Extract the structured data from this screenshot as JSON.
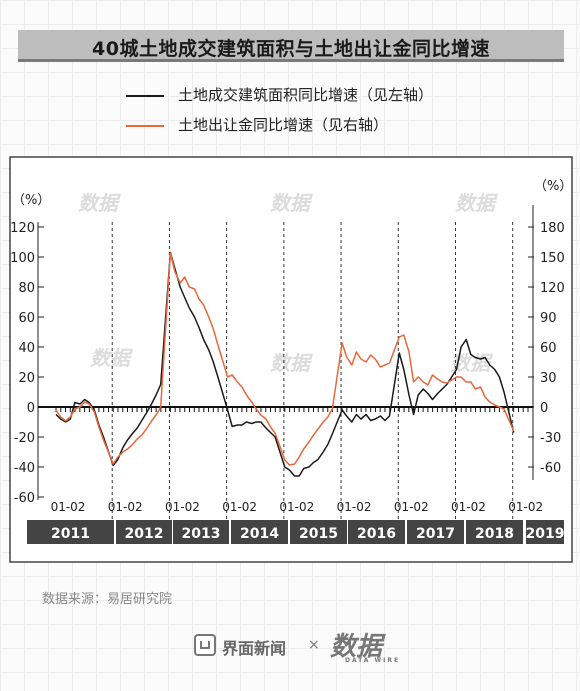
{
  "title": "40城土地成交建筑面积与土地出让金同比增速",
  "legend": [
    {
      "label": "土地成交建筑面积同比增速（见左轴）",
      "color": "#1a1a1a"
    },
    {
      "label": "土地出让金同比增速（见右轴）",
      "color": "#e8683f"
    }
  ],
  "source": "数据来源：易居研究院",
  "footer": {
    "brand1": "界面新闻",
    "times": "×",
    "brand2": "数据",
    "brand2_sub": "DATA WIRE"
  },
  "watermark": "数据",
  "chart_data": {
    "type": "line",
    "left_axis": {
      "unit_label": "（%）",
      "ylim": [
        -60,
        120
      ],
      "ticks": [
        120,
        100,
        80,
        60,
        40,
        20,
        0,
        -20,
        -40,
        -60
      ]
    },
    "right_axis": {
      "unit_label": "（%）",
      "ylim": [
        -90,
        180
      ],
      "ticks": [
        180,
        150,
        120,
        90,
        60,
        30,
        0,
        -30,
        -60
      ]
    },
    "years": [
      "2011",
      "2012",
      "2013",
      "2014",
      "2015",
      "2016",
      "2017",
      "2018",
      "2019"
    ],
    "period_tick_label": "01-02",
    "x_start": 2011.0,
    "x_end": 2019.25,
    "series": [
      {
        "name": "土地成交建筑面积同比增速（见左轴）",
        "axis": "left",
        "color": "#1a1a1a",
        "points": [
          [
            2011.0,
            -5
          ],
          [
            2011.08,
            -8
          ],
          [
            2011.17,
            -10
          ],
          [
            2011.25,
            -8
          ],
          [
            2011.33,
            3
          ],
          [
            2011.42,
            2
          ],
          [
            2011.5,
            5
          ],
          [
            2011.58,
            3
          ],
          [
            2011.67,
            -2
          ],
          [
            2011.75,
            -12
          ],
          [
            2011.83,
            -20
          ],
          [
            2012.0,
            -39
          ],
          [
            2012.08,
            -35
          ],
          [
            2012.17,
            -27
          ],
          [
            2012.25,
            -22
          ],
          [
            2012.33,
            -18
          ],
          [
            2012.42,
            -14
          ],
          [
            2012.5,
            -9
          ],
          [
            2012.58,
            -4
          ],
          [
            2012.67,
            2
          ],
          [
            2012.75,
            8
          ],
          [
            2012.83,
            15
          ],
          [
            2013.0,
            103
          ],
          [
            2013.08,
            92
          ],
          [
            2013.17,
            80
          ],
          [
            2013.25,
            73
          ],
          [
            2013.33,
            66
          ],
          [
            2013.42,
            60
          ],
          [
            2013.5,
            53
          ],
          [
            2013.58,
            45
          ],
          [
            2013.67,
            38
          ],
          [
            2013.75,
            30
          ],
          [
            2013.83,
            20
          ],
          [
            2014.0,
            -2
          ],
          [
            2014.08,
            -13
          ],
          [
            2014.17,
            -12
          ],
          [
            2014.25,
            -12
          ],
          [
            2014.33,
            -10
          ],
          [
            2014.42,
            -11
          ],
          [
            2014.5,
            -10
          ],
          [
            2014.58,
            -10
          ],
          [
            2014.67,
            -14
          ],
          [
            2014.75,
            -17
          ],
          [
            2014.83,
            -20
          ],
          [
            2015.0,
            -40
          ],
          [
            2015.08,
            -42
          ],
          [
            2015.17,
            -46
          ],
          [
            2015.25,
            -46
          ],
          [
            2015.33,
            -41
          ],
          [
            2015.42,
            -40
          ],
          [
            2015.5,
            -37
          ],
          [
            2015.58,
            -35
          ],
          [
            2015.67,
            -30
          ],
          [
            2015.75,
            -25
          ],
          [
            2015.83,
            -18
          ],
          [
            2016.0,
            -2
          ],
          [
            2016.08,
            -6
          ],
          [
            2016.17,
            -10
          ],
          [
            2016.25,
            -5
          ],
          [
            2016.33,
            -8
          ],
          [
            2016.42,
            -5
          ],
          [
            2016.5,
            -9
          ],
          [
            2016.58,
            -8
          ],
          [
            2016.67,
            -6
          ],
          [
            2016.75,
            -9
          ],
          [
            2016.83,
            -6
          ],
          [
            2017.0,
            36
          ],
          [
            2017.08,
            25
          ],
          [
            2017.17,
            8
          ],
          [
            2017.25,
            -5
          ],
          [
            2017.33,
            8
          ],
          [
            2017.42,
            12
          ],
          [
            2017.5,
            9
          ],
          [
            2017.58,
            5
          ],
          [
            2017.67,
            9
          ],
          [
            2017.75,
            12
          ],
          [
            2017.83,
            15
          ],
          [
            2018.0,
            25
          ],
          [
            2018.08,
            40
          ],
          [
            2018.17,
            45
          ],
          [
            2018.25,
            35
          ],
          [
            2018.33,
            33
          ],
          [
            2018.42,
            32
          ],
          [
            2018.5,
            33
          ],
          [
            2018.58,
            28
          ],
          [
            2018.67,
            25
          ],
          [
            2018.75,
            20
          ],
          [
            2018.83,
            10
          ],
          [
            2019.0,
            -17
          ]
        ]
      },
      {
        "name": "土地出让金同比增速（见右轴）",
        "axis": "right",
        "color": "#e8683f",
        "points": [
          [
            2011.0,
            -3
          ],
          [
            2011.08,
            -10
          ],
          [
            2011.17,
            -14
          ],
          [
            2011.25,
            -10
          ],
          [
            2011.33,
            -2
          ],
          [
            2011.42,
            0
          ],
          [
            2011.5,
            5
          ],
          [
            2011.58,
            3
          ],
          [
            2011.67,
            -5
          ],
          [
            2011.75,
            -20
          ],
          [
            2011.83,
            -33
          ],
          [
            2012.0,
            -57
          ],
          [
            2012.08,
            -50
          ],
          [
            2012.17,
            -45
          ],
          [
            2012.25,
            -42
          ],
          [
            2012.33,
            -38
          ],
          [
            2012.42,
            -32
          ],
          [
            2012.5,
            -28
          ],
          [
            2012.58,
            -22
          ],
          [
            2012.67,
            -14
          ],
          [
            2012.75,
            -8
          ],
          [
            2012.83,
            0
          ],
          [
            2013.0,
            154
          ],
          [
            2013.08,
            135
          ],
          [
            2013.17,
            124
          ],
          [
            2013.25,
            130
          ],
          [
            2013.33,
            120
          ],
          [
            2013.42,
            118
          ],
          [
            2013.5,
            108
          ],
          [
            2013.58,
            102
          ],
          [
            2013.67,
            90
          ],
          [
            2013.75,
            78
          ],
          [
            2013.83,
            62
          ],
          [
            2014.0,
            30
          ],
          [
            2014.08,
            32
          ],
          [
            2014.17,
            25
          ],
          [
            2014.25,
            20
          ],
          [
            2014.33,
            12
          ],
          [
            2014.42,
            5
          ],
          [
            2014.5,
            -2
          ],
          [
            2014.58,
            -8
          ],
          [
            2014.67,
            -12
          ],
          [
            2014.75,
            -20
          ],
          [
            2014.83,
            -26
          ],
          [
            2015.0,
            -53
          ],
          [
            2015.08,
            -58
          ],
          [
            2015.17,
            -57
          ],
          [
            2015.25,
            -50
          ],
          [
            2015.33,
            -42
          ],
          [
            2015.42,
            -35
          ],
          [
            2015.5,
            -28
          ],
          [
            2015.58,
            -22
          ],
          [
            2015.67,
            -15
          ],
          [
            2015.75,
            -10
          ],
          [
            2015.83,
            -2
          ],
          [
            2016.0,
            64
          ],
          [
            2016.08,
            50
          ],
          [
            2016.17,
            42
          ],
          [
            2016.25,
            55
          ],
          [
            2016.33,
            48
          ],
          [
            2016.42,
            45
          ],
          [
            2016.5,
            52
          ],
          [
            2016.58,
            48
          ],
          [
            2016.67,
            40
          ],
          [
            2016.75,
            42
          ],
          [
            2016.83,
            44
          ],
          [
            2017.0,
            70
          ],
          [
            2017.08,
            72
          ],
          [
            2017.17,
            55
          ],
          [
            2017.25,
            25
          ],
          [
            2017.33,
            30
          ],
          [
            2017.42,
            25
          ],
          [
            2017.5,
            22
          ],
          [
            2017.58,
            32
          ],
          [
            2017.67,
            28
          ],
          [
            2017.75,
            25
          ],
          [
            2017.83,
            24
          ],
          [
            2018.0,
            30
          ],
          [
            2018.08,
            30
          ],
          [
            2018.17,
            25
          ],
          [
            2018.25,
            25
          ],
          [
            2018.33,
            18
          ],
          [
            2018.42,
            20
          ],
          [
            2018.5,
            10
          ],
          [
            2018.58,
            5
          ],
          [
            2018.67,
            2
          ],
          [
            2018.75,
            0
          ],
          [
            2018.83,
            -2
          ],
          [
            2019.0,
            -24
          ]
        ]
      }
    ]
  }
}
